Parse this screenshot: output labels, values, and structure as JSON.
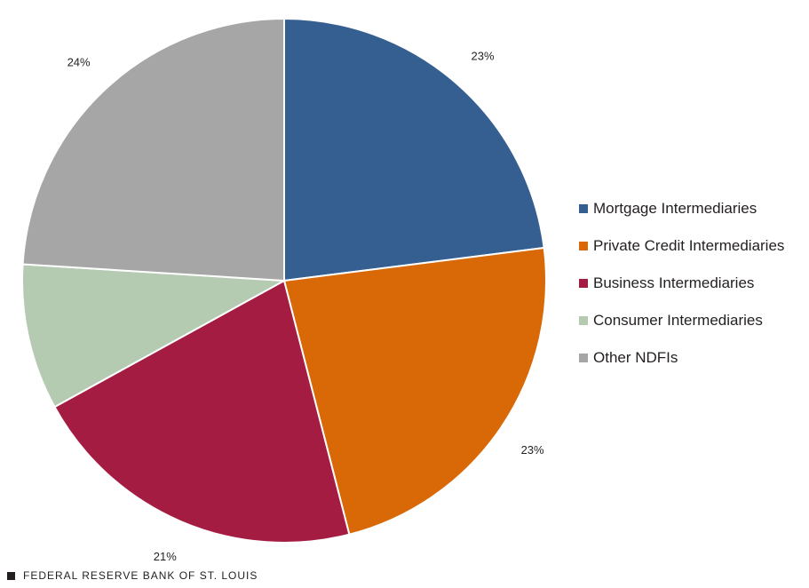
{
  "chart_data": {
    "type": "pie",
    "slices": [
      {
        "label": "Mortgage Intermediaries",
        "value": 23,
        "value_label": "23%",
        "color": "#365f91"
      },
      {
        "label": "Private Credit Intermediaries",
        "value": 23,
        "value_label": "23%",
        "color": "#d96806"
      },
      {
        "label": "Business Intermediaries",
        "value": 21,
        "value_label": "21%",
        "color": "#a51c43"
      },
      {
        "label": "Consumer Intermediaries",
        "value": 9,
        "value_label": "9%",
        "color": "#b4cbb2"
      },
      {
        "label": "Other NDFIs",
        "value": 24,
        "value_label": "24%",
        "color": "#a6a6a6"
      }
    ],
    "legend_position": "right"
  },
  "footer": {
    "source": "FEDERAL RESERVE BANK OF ST. LOUIS",
    "mark_color": "#231f20"
  }
}
